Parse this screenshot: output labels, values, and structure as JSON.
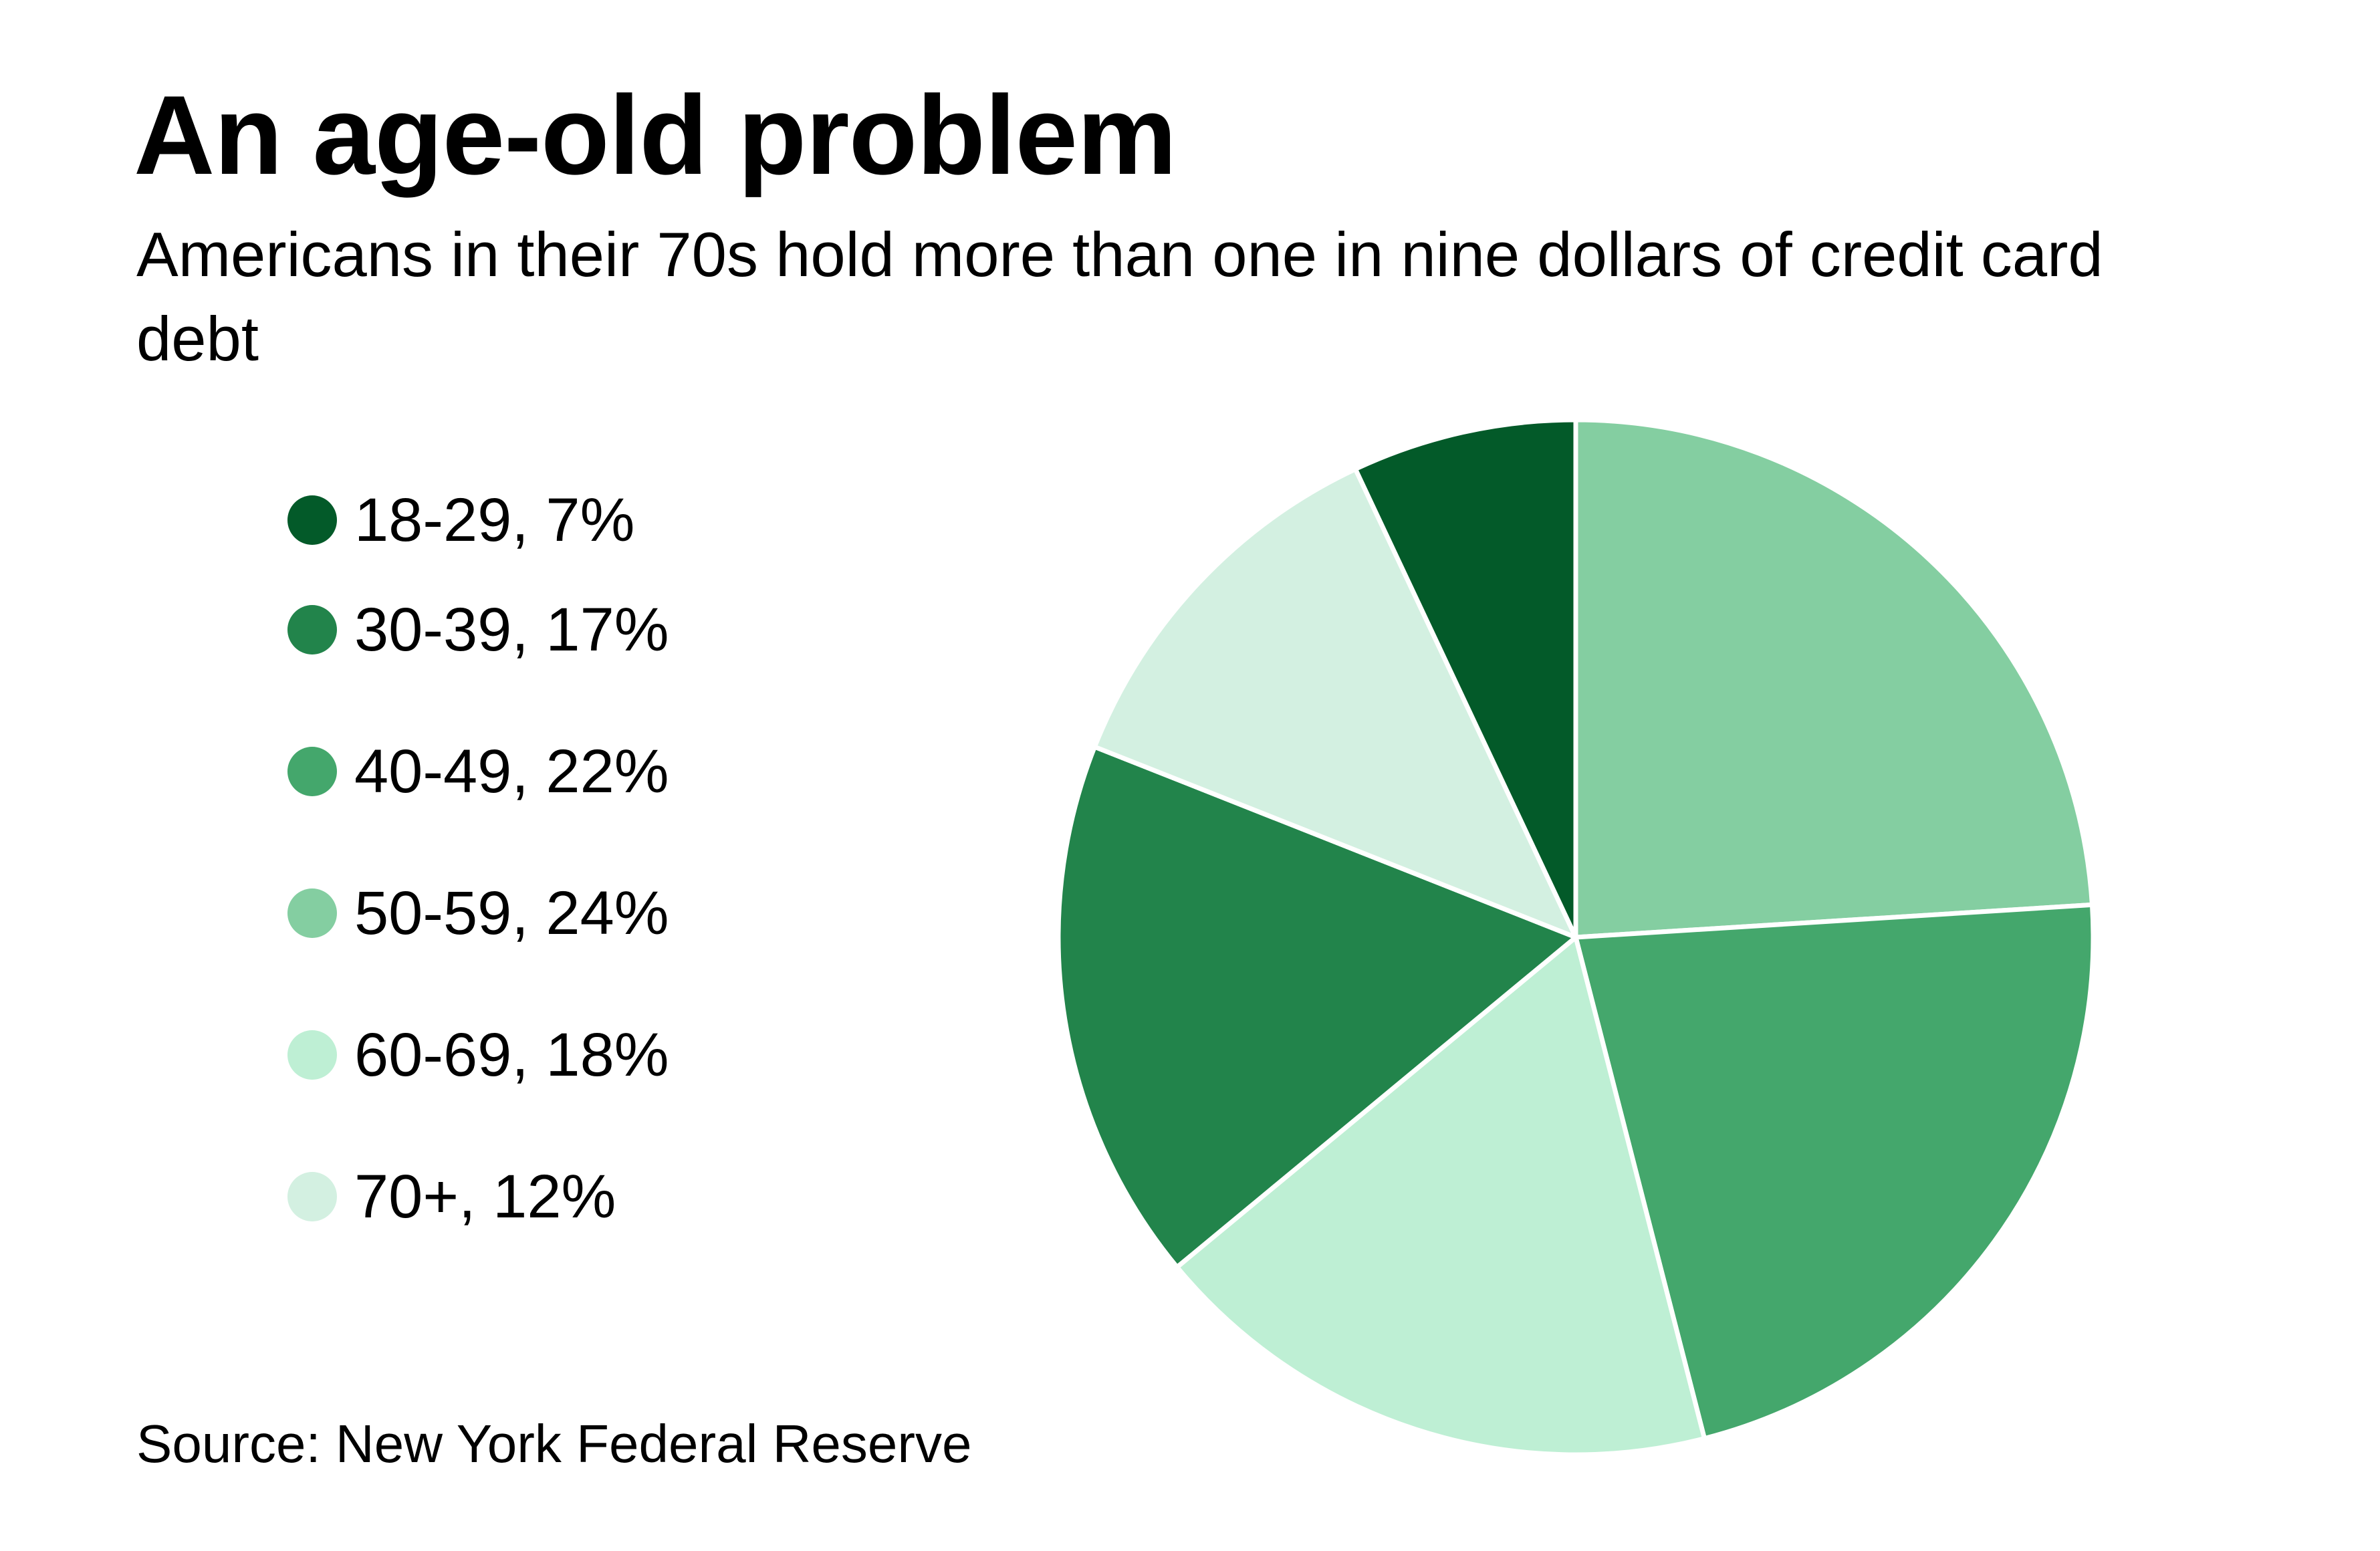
{
  "header": {
    "title": "An age-old problem",
    "subtitle": "Americans in their 70s hold more than one in nine dollars of credit card debt"
  },
  "legend": [
    {
      "label": "18-29, 7%",
      "color": "#035A29"
    },
    {
      "label": "30-39, 17%",
      "color": "#22844B"
    },
    {
      "label": "40-49, 22%",
      "color": "#44A76C"
    },
    {
      "label": "50-59, 24%",
      "color": "#84CEA1"
    },
    {
      "label": "60-69, 18%",
      "color": "#BEEFD4"
    },
    {
      "label": "70+, 12%",
      "color": "#D3F0E1"
    }
  ],
  "footer": {
    "source": "Source: New York Federal Reserve"
  },
  "chart_data": {
    "type": "pie",
    "title": "An age-old problem",
    "subtitle": "Americans in their 70s hold more than one in nine dollars of credit card debt",
    "categories": [
      "18-29",
      "30-39",
      "40-49",
      "50-59",
      "60-69",
      "70+"
    ],
    "values": [
      7,
      17,
      22,
      24,
      18,
      12
    ],
    "unit": "%",
    "colors": [
      "#035A29",
      "#22844B",
      "#44A76C",
      "#84CEA1",
      "#BEEFD4",
      "#D3F0E1"
    ],
    "slice_order_clockwise_from_top": [
      "50-59",
      "40-49",
      "60-69",
      "30-39",
      "70+",
      "18-29"
    ],
    "legend_position": "left",
    "source": "Source: New York Federal Reserve"
  }
}
